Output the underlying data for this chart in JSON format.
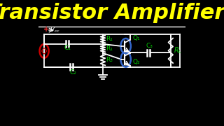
{
  "title": "Transistor Amplifiers",
  "bg_color": "#000000",
  "title_color": "#FFFF00",
  "title_fontsize": 22,
  "separator_color": "#FFFFFF",
  "circuit_color": "#FFFFFF",
  "label_color": "#00CC00",
  "vcc_plus_color": "#FF3333",
  "source_color": "#CC0000",
  "transistor_circle_color": "#3366CC",
  "C1": "C₁",
  "C2": "C₂",
  "C3": "C₃",
  "R1_top": "R₁",
  "R1_mid": "R₁",
  "R3": "R₃",
  "Q1": "Q₁",
  "Q2": "Q₂"
}
